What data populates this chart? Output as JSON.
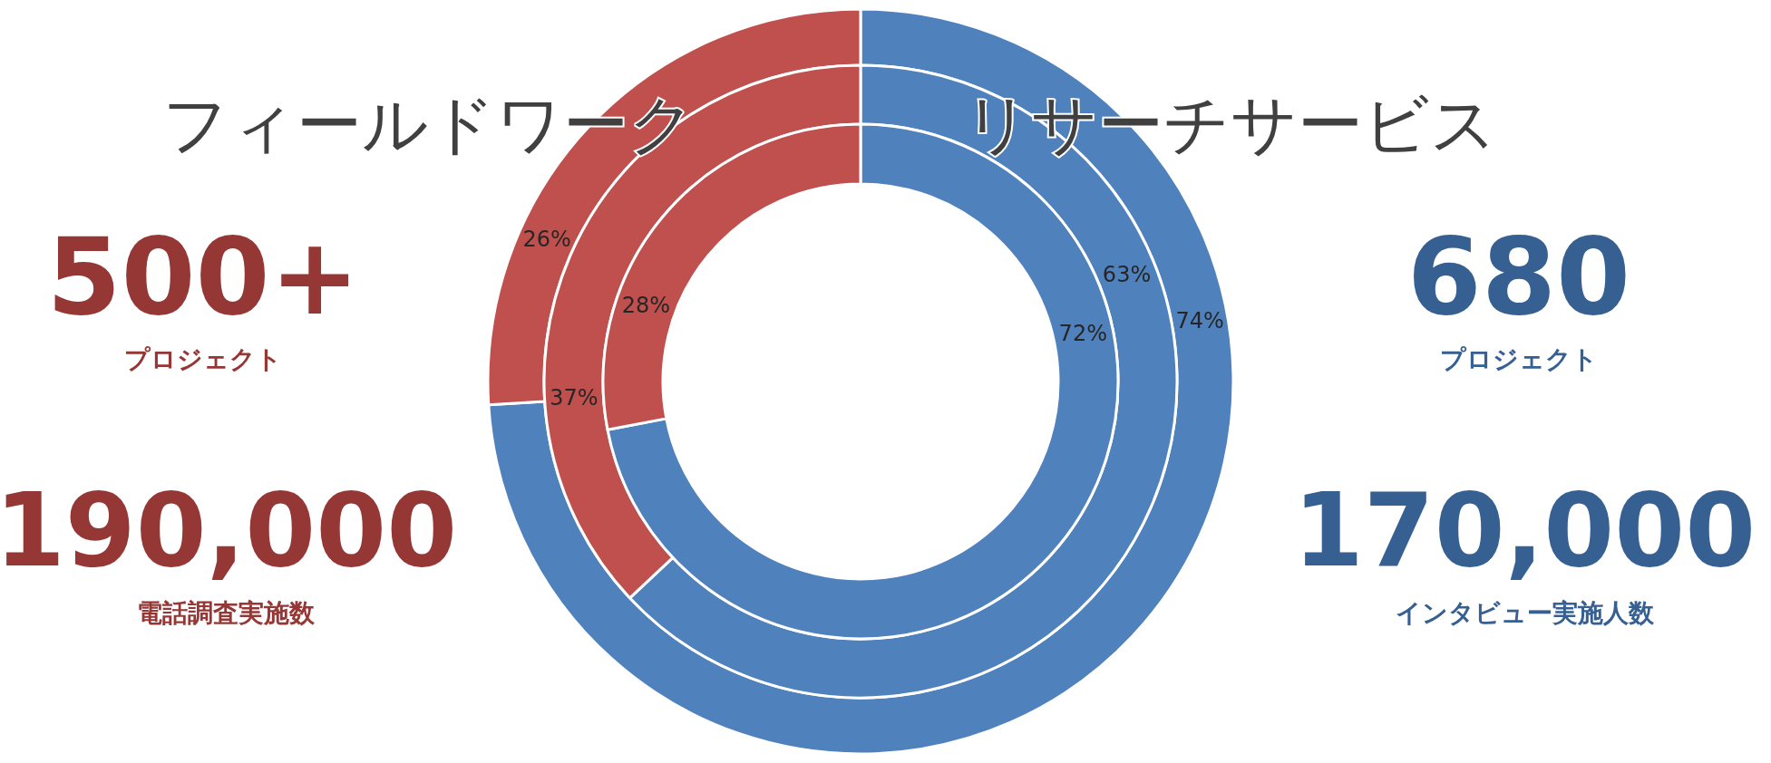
{
  "chart_data": {
    "type": "donut",
    "categories": [
      "リサーチサービス",
      "フィールドワーク"
    ],
    "series": [
      {
        "values": [
          74,
          26
        ],
        "colors": [
          "#4f81bd",
          "#c0504d"
        ],
        "value_labels": [
          "74%",
          "26%"
        ]
      },
      {
        "values": [
          63,
          37
        ],
        "colors": [
          "#4f81bd",
          "#c0504d"
        ],
        "value_labels": [
          "63%",
          "37%"
        ]
      },
      {
        "values": [
          72,
          28
        ],
        "colors": [
          "#4f81bd",
          "#c0504d"
        ],
        "value_labels": [
          "72%",
          "28%"
        ]
      }
    ],
    "annotations": [
      "500+",
      "プロジェクト",
      "190,000",
      "電話調査実施数",
      "680",
      "プロジェクト",
      "170,000",
      "インタビュー実施人数"
    ]
  }
}
